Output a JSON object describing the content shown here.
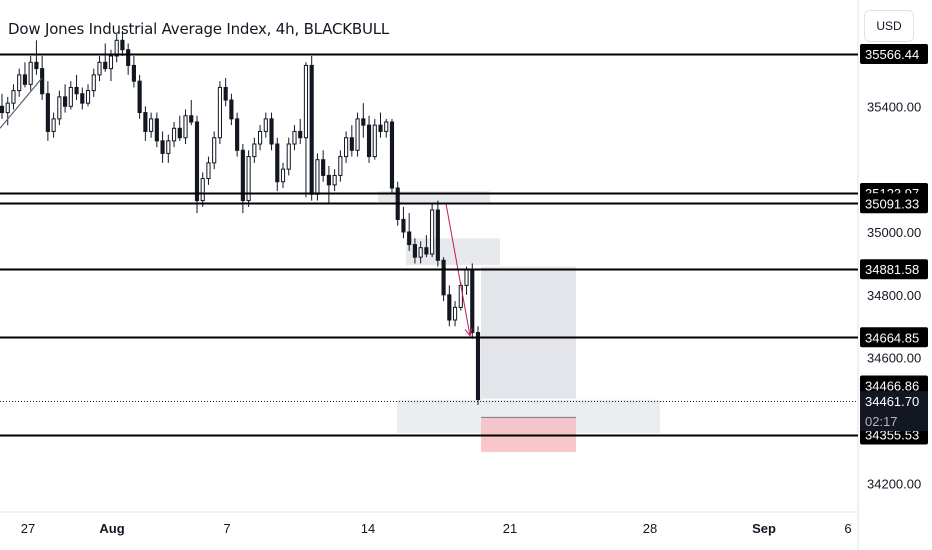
{
  "header": {
    "title": "Dow Jones Industrial Average Index, 4h, BLACKBULL",
    "currency": "USD"
  },
  "colors": {
    "up": "#ffffff",
    "down": "#131722",
    "line": "#000000",
    "zone": "#d1d4dc",
    "stop_zone": "#f7c1c6",
    "arrow": "#c2185b",
    "axis_text": "#131722"
  },
  "chart_data": {
    "type": "candlestick",
    "title": "Dow Jones Industrial Average Index, 4h, BLACKBULL",
    "xlabel": "",
    "ylabel": "",
    "ylim": [
      34150,
      35640
    ],
    "y_ticks": [
      "35400.00",
      "35000.00",
      "34800.00",
      "34600.00",
      "34200.00"
    ],
    "x_ticks": [
      "27",
      "Aug",
      "7",
      "14",
      "21",
      "28",
      "Sep",
      "6"
    ],
    "horizontal_levels": [
      {
        "value": 35566.44,
        "label": "35566.44"
      },
      {
        "value": 35123.97,
        "label": "35123.97"
      },
      {
        "value": 35091.33,
        "label": "35091.33"
      },
      {
        "value": 34881.58,
        "label": "34881.58"
      },
      {
        "value": 34664.85,
        "label": "34664.85"
      },
      {
        "value": 34355.53,
        "label": "34355.53"
      }
    ],
    "current_price": {
      "value": 34466.86,
      "label": "34466.86"
    },
    "last_price": {
      "value": 34461.7,
      "label": "34461.70",
      "countdown": "02:17"
    },
    "candles": [
      [
        35400,
        35440,
        35360,
        35380
      ],
      [
        35380,
        35430,
        35340,
        35410
      ],
      [
        35410,
        35470,
        35390,
        35450
      ],
      [
        35450,
        35520,
        35430,
        35500
      ],
      [
        35500,
        35540,
        35460,
        35470
      ],
      [
        35470,
        35560,
        35450,
        35540
      ],
      [
        35540,
        35610,
        35500,
        35520
      ],
      [
        35520,
        35560,
        35420,
        35440
      ],
      [
        35440,
        35480,
        35290,
        35320
      ],
      [
        35320,
        35380,
        35300,
        35360
      ],
      [
        35360,
        35450,
        35340,
        35430
      ],
      [
        35430,
        35470,
        35380,
        35400
      ],
      [
        35400,
        35480,
        35390,
        35460
      ],
      [
        35460,
        35500,
        35420,
        35440
      ],
      [
        35440,
        35460,
        35390,
        35410
      ],
      [
        35410,
        35470,
        35400,
        35450
      ],
      [
        35450,
        35520,
        35430,
        35500
      ],
      [
        35500,
        35560,
        35480,
        35540
      ],
      [
        35540,
        35600,
        35510,
        35520
      ],
      [
        35520,
        35580,
        35480,
        35560
      ],
      [
        35560,
        35630,
        35540,
        35610
      ],
      [
        35610,
        35640,
        35560,
        35580
      ],
      [
        35580,
        35600,
        35500,
        35530
      ],
      [
        35530,
        35560,
        35460,
        35480
      ],
      [
        35480,
        35500,
        35360,
        35380
      ],
      [
        35380,
        35400,
        35290,
        35320
      ],
      [
        35320,
        35380,
        35300,
        35360
      ],
      [
        35360,
        35380,
        35270,
        35290
      ],
      [
        35290,
        35320,
        35220,
        35250
      ],
      [
        35250,
        35310,
        35220,
        35290
      ],
      [
        35290,
        35350,
        35270,
        35330
      ],
      [
        35330,
        35370,
        35290,
        35300
      ],
      [
        35300,
        35390,
        35280,
        35370
      ],
      [
        35370,
        35420,
        35340,
        35350
      ],
      [
        35350,
        35370,
        35060,
        35100
      ],
      [
        35100,
        35190,
        35080,
        35170
      ],
      [
        35170,
        35240,
        35150,
        35220
      ],
      [
        35220,
        35320,
        35200,
        35300
      ],
      [
        35300,
        35480,
        35280,
        35460
      ],
      [
        35460,
        35490,
        35400,
        35420
      ],
      [
        35420,
        35440,
        35340,
        35360
      ],
      [
        35360,
        35380,
        35240,
        35260
      ],
      [
        35260,
        35280,
        35060,
        35100
      ],
      [
        35100,
        35260,
        35080,
        35240
      ],
      [
        35240,
        35300,
        35220,
        35280
      ],
      [
        35280,
        35340,
        35260,
        35320
      ],
      [
        35320,
        35380,
        35300,
        35360
      ],
      [
        35360,
        35380,
        35260,
        35280
      ],
      [
        35280,
        35300,
        35130,
        35160
      ],
      [
        35160,
        35220,
        35140,
        35200
      ],
      [
        35200,
        35300,
        35180,
        35280
      ],
      [
        35280,
        35340,
        35260,
        35320
      ],
      [
        35320,
        35360,
        35280,
        35300
      ],
      [
        35300,
        35540,
        35110,
        35530
      ],
      [
        35530,
        35560,
        35100,
        35120
      ],
      [
        35120,
        35250,
        35100,
        35230
      ],
      [
        35230,
        35260,
        35160,
        35180
      ],
      [
        35180,
        35210,
        35090,
        35150
      ],
      [
        35150,
        35200,
        35130,
        35180
      ],
      [
        35180,
        35260,
        35160,
        35240
      ],
      [
        35240,
        35320,
        35220,
        35300
      ],
      [
        35300,
        35340,
        35240,
        35260
      ],
      [
        35260,
        35380,
        35240,
        35360
      ],
      [
        35360,
        35410,
        35300,
        35340
      ],
      [
        35340,
        35370,
        35220,
        35240
      ],
      [
        35240,
        35360,
        35230,
        35340
      ],
      [
        35340,
        35380,
        35300,
        35320
      ],
      [
        35320,
        35360,
        35300,
        35350
      ],
      [
        35350,
        35360,
        35120,
        35140
      ],
      [
        35140,
        35160,
        35020,
        35040
      ],
      [
        35040,
        35080,
        34980,
        35000
      ],
      [
        35000,
        35060,
        34940,
        34960
      ],
      [
        34960,
        34980,
        34900,
        34920
      ],
      [
        34920,
        34970,
        34900,
        34950
      ],
      [
        34950,
        34990,
        34920,
        34930
      ],
      [
        34930,
        35090,
        34920,
        35070
      ],
      [
        35070,
        35100,
        34890,
        34910
      ],
      [
        34910,
        34920,
        34780,
        34800
      ],
      [
        34800,
        34830,
        34700,
        34720
      ],
      [
        34720,
        34780,
        34700,
        34760
      ],
      [
        34760,
        34840,
        34750,
        34830
      ],
      [
        34830,
        34890,
        34800,
        34880
      ],
      [
        34880,
        34900,
        34660,
        34680
      ],
      [
        34680,
        34700,
        34450,
        34466.86
      ]
    ]
  }
}
